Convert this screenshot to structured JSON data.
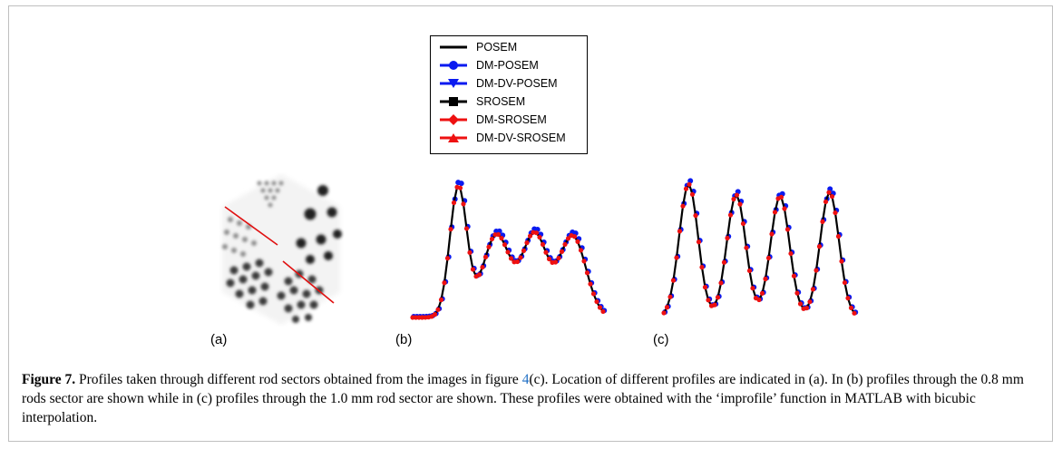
{
  "legend": [
    {
      "label": "POSEM",
      "color": "#000000",
      "marker": "none"
    },
    {
      "label": "DM-POSEM",
      "color": "#0a1af0",
      "marker": "circle"
    },
    {
      "label": "DM-DV-POSEM",
      "color": "#0a1af0",
      "marker": "triangle-down"
    },
    {
      "label": "SROSEM",
      "color": "#000000",
      "marker": "square"
    },
    {
      "label": "DM-SROSEM",
      "color": "#ee1111",
      "marker": "diamond"
    },
    {
      "label": "DM-DV-SROSEM",
      "color": "#ee1111",
      "marker": "triangle-up"
    }
  ],
  "panels": {
    "a": "(a)",
    "b": "(b)",
    "c": "(c)"
  },
  "caption": {
    "label": "Figure 7.",
    "text_1": " Profiles taken through different rod sectors obtained from the images in figure ",
    "ref": "4",
    "text_2": "(c). Location of different profiles are indicated in (a). In (b) profiles through the 0.8 mm rods sector are shown while in (c) profiles through the 1.0 mm rod sector are shown. These profiles were obtained with the ‘improfile’ function in MATLAB with bicubic interpolation."
  }
}
